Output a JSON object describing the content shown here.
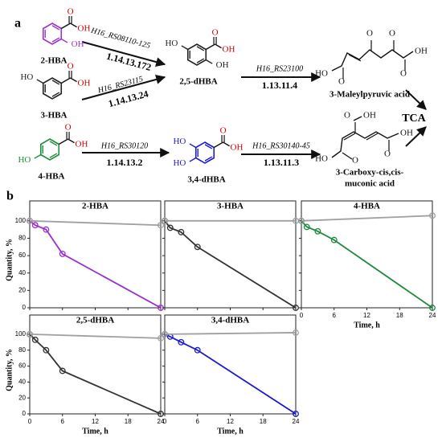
{
  "panel_a": {
    "label": "a",
    "compounds": [
      {
        "name": "2-HBA",
        "color": "#9b30d0",
        "atoms": [
          "O",
          "OH",
          "OH"
        ]
      },
      {
        "name": "3-HBA",
        "color": "#222222",
        "atoms": [
          "O",
          "OH",
          "HO"
        ]
      },
      {
        "name": "4-HBA",
        "color": "#1e8a3c",
        "atoms": [
          "O",
          "OH",
          "HO"
        ]
      },
      {
        "name": "2,5-dHBA",
        "color": "#222222",
        "atoms": [
          "O",
          "OH",
          "OH",
          "HO"
        ]
      },
      {
        "name": "3,4-dHBA",
        "color": "#1a1ad0",
        "atoms": [
          "O",
          "OH",
          "HO",
          "HO"
        ]
      }
    ],
    "products": [
      {
        "name": [
          "3-Maleylpyruvic acid"
        ],
        "atoms": [
          "HO",
          "O",
          "O",
          "O",
          "O",
          "OH"
        ]
      },
      {
        "name": [
          "3-Carboxy-cis,cis-",
          "muconic acid"
        ],
        "atoms": [
          "HO",
          "O",
          "O",
          "OH",
          "O",
          "OH"
        ]
      }
    ],
    "enzymes": [
      {
        "gene": "H16_RS08110-125",
        "ec": "1.14.13.172"
      },
      {
        "gene": "H16_RS23115",
        "ec": "1.14.13.24"
      },
      {
        "gene": "H16_RS30120",
        "ec": "1.14.13.2"
      },
      {
        "gene": "H16_RS23100",
        "ec": "1.13.11.4"
      },
      {
        "gene": "H16_RS30140-45",
        "ec": "1.13.11.3"
      }
    ],
    "end": "TCA"
  },
  "panel_b_label": "b",
  "chart_data": [
    {
      "type": "line",
      "title": "2-HBA",
      "ylabel": "Quantity, %",
      "xlim": [
        0,
        24
      ],
      "xticks": [
        0,
        6,
        12,
        18,
        24
      ],
      "ylim": [
        0,
        110
      ],
      "yticks": [
        0,
        20,
        40,
        60,
        80,
        100
      ],
      "series": [
        {
          "color": "#9b30d0",
          "x": [
            0,
            1,
            3,
            6,
            24
          ],
          "values": [
            100,
            95,
            90,
            62,
            0
          ]
        },
        {
          "color": "#a0a0a0",
          "x": [
            0,
            24
          ],
          "values": [
            100,
            95
          ]
        }
      ]
    },
    {
      "type": "line",
      "title": "3-HBA",
      "xlim": [
        0,
        24
      ],
      "xticks": [
        0,
        6,
        12,
        18,
        24
      ],
      "ylim": [
        0,
        110
      ],
      "yticks": [
        0,
        20,
        40,
        60,
        80,
        100
      ],
      "series": [
        {
          "color": "#333333",
          "x": [
            0,
            1,
            3,
            6,
            24
          ],
          "values": [
            100,
            92,
            87,
            70,
            0
          ]
        },
        {
          "color": "#a0a0a0",
          "x": [
            0,
            24
          ],
          "values": [
            100,
            100
          ]
        }
      ]
    },
    {
      "type": "line",
      "title": "4-HBA",
      "xlabel": "Time, h",
      "xlim": [
        0,
        24
      ],
      "xticks": [
        0,
        6,
        12,
        18,
        24
      ],
      "ylim": [
        0,
        110
      ],
      "yticks": [
        0,
        20,
        40,
        60,
        80,
        100
      ],
      "series": [
        {
          "color": "#1e8a3c",
          "x": [
            0,
            1,
            3,
            6,
            24
          ],
          "values": [
            100,
            93,
            88,
            78,
            0
          ]
        },
        {
          "color": "#a0a0a0",
          "x": [
            0,
            24
          ],
          "values": [
            100,
            106
          ]
        }
      ]
    },
    {
      "type": "line",
      "title": "2,5-dHBA",
      "ylabel": "Quantity, %",
      "xlabel": "Time, h",
      "xlim": [
        0,
        24
      ],
      "xticks": [
        0,
        6,
        12,
        18,
        24
      ],
      "ylim": [
        0,
        110
      ],
      "yticks": [
        0,
        20,
        40,
        60,
        80,
        100
      ],
      "series": [
        {
          "color": "#333333",
          "x": [
            0,
            1,
            3,
            6,
            24
          ],
          "values": [
            100,
            93,
            80,
            54,
            0
          ]
        },
        {
          "color": "#a0a0a0",
          "x": [
            0,
            24
          ],
          "values": [
            100,
            95
          ]
        }
      ]
    },
    {
      "type": "line",
      "title": "3,4-dHBA",
      "xlabel": "Time, h",
      "xlim": [
        0,
        24
      ],
      "xticks": [
        0,
        6,
        12,
        18,
        24
      ],
      "ylim": [
        0,
        110
      ],
      "yticks": [
        0,
        20,
        40,
        60,
        80,
        100
      ],
      "series": [
        {
          "color": "#1a1ad0",
          "x": [
            0,
            1,
            3,
            6,
            24
          ],
          "values": [
            100,
            97,
            90,
            80,
            0
          ]
        },
        {
          "color": "#a0a0a0",
          "x": [
            0,
            24
          ],
          "values": [
            100,
            102
          ]
        }
      ]
    }
  ]
}
